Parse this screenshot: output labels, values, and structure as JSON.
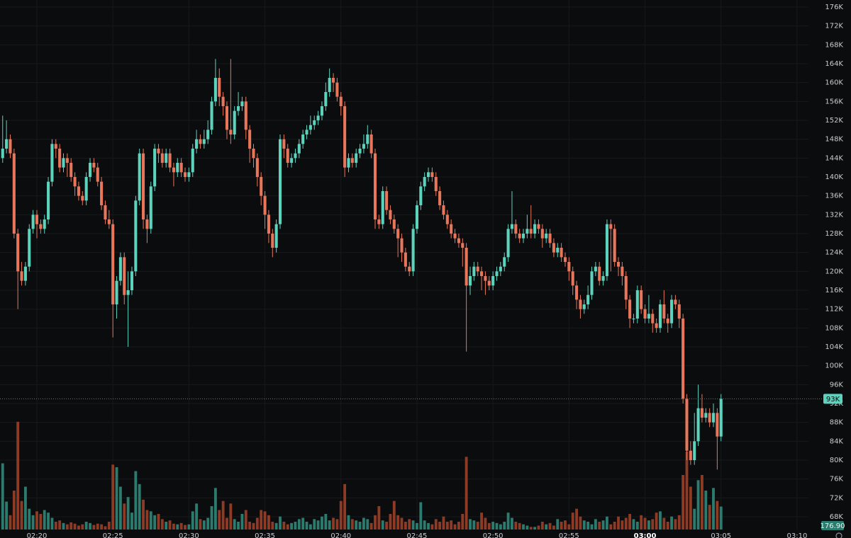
{
  "chart_data": {
    "type": "candlestick",
    "up_color": "#5cd3bd",
    "down_color": "#e8765a",
    "up_volume_color": "#2b7c6e",
    "down_volume_color": "#8e3b25",
    "ylim": [
      66.5,
      177.5
    ],
    "yticks": [
      {
        "value": 68,
        "label": "68K"
      },
      {
        "value": 72,
        "label": "72K"
      },
      {
        "value": 76,
        "label": "76K"
      },
      {
        "value": 80,
        "label": "80K"
      },
      {
        "value": 84,
        "label": "84K"
      },
      {
        "value": 88,
        "label": "88K"
      },
      {
        "value": 92,
        "label": "92K"
      },
      {
        "value": 96,
        "label": "96K"
      },
      {
        "value": 100,
        "label": "100K"
      },
      {
        "value": 104,
        "label": "104K"
      },
      {
        "value": 108,
        "label": "108K"
      },
      {
        "value": 112,
        "label": "112K"
      },
      {
        "value": 116,
        "label": "116K"
      },
      {
        "value": 120,
        "label": "120K"
      },
      {
        "value": 124,
        "label": "124K"
      },
      {
        "value": 128,
        "label": "128K"
      },
      {
        "value": 132,
        "label": "132K"
      },
      {
        "value": 136,
        "label": "136K"
      },
      {
        "value": 140,
        "label": "140K"
      },
      {
        "value": 144,
        "label": "144K"
      },
      {
        "value": 148,
        "label": "148K"
      },
      {
        "value": 152,
        "label": "152K"
      },
      {
        "value": 156,
        "label": "156K"
      },
      {
        "value": 160,
        "label": "160K"
      },
      {
        "value": 164,
        "label": "164K"
      },
      {
        "value": 168,
        "label": "168K"
      },
      {
        "value": 172,
        "label": "172K"
      },
      {
        "value": 176,
        "label": "176K"
      }
    ],
    "xlim": [
      -0.7,
      212
    ],
    "xticks": [
      {
        "value": 9,
        "label": "02:20"
      },
      {
        "value": 29,
        "label": "02:25"
      },
      {
        "value": 49,
        "label": "02:30"
      },
      {
        "value": 69,
        "label": "02:35"
      },
      {
        "value": 89,
        "label": "02:40"
      },
      {
        "value": 109,
        "label": "02:45"
      },
      {
        "value": 129,
        "label": "02:50"
      },
      {
        "value": 149,
        "label": "02:55"
      },
      {
        "value": 169,
        "label": "03:00",
        "emphasis": true
      },
      {
        "value": 189,
        "label": "03:05"
      },
      {
        "value": 209,
        "label": "03:10"
      }
    ],
    "grid": true,
    "last_price": {
      "value": 93,
      "label": "93K"
    },
    "volume_ylim": [
      0,
      900
    ],
    "last_volume_label": "176.90",
    "open": [
      144,
      146,
      148,
      145,
      128,
      120,
      118,
      121,
      129,
      132,
      130,
      129,
      131,
      139,
      147,
      146,
      142,
      144,
      143,
      140,
      138,
      136,
      135,
      140,
      143,
      142,
      139,
      134,
      131,
      130,
      113,
      118,
      123,
      115,
      116,
      120,
      135,
      145,
      131,
      129,
      138,
      146,
      145,
      143,
      145,
      142,
      141,
      143,
      141,
      140,
      141,
      146,
      148,
      147,
      148,
      150,
      156,
      161,
      157,
      155,
      150,
      149,
      154,
      155,
      156,
      150,
      146,
      144,
      140,
      136,
      132,
      128,
      125,
      130,
      148,
      146,
      143,
      144,
      145,
      147,
      149,
      150,
      151,
      152,
      153,
      155,
      158,
      161,
      160,
      157,
      155,
      142,
      144,
      143,
      145,
      146,
      147,
      149,
      145,
      131,
      130,
      137,
      133,
      131,
      129,
      127,
      124,
      121,
      120,
      129,
      134,
      138,
      140,
      141,
      140,
      137,
      134,
      132,
      130,
      128,
      127,
      126,
      125,
      117,
      119,
      121,
      120,
      119,
      118,
      117,
      119,
      120,
      121,
      123,
      129,
      130,
      128,
      127,
      128,
      129,
      128,
      130,
      129,
      127,
      128,
      126,
      124,
      125,
      123,
      122,
      120,
      117,
      114,
      112,
      113,
      115,
      120,
      121,
      118,
      119,
      130,
      129,
      122,
      121,
      119,
      114,
      110,
      110,
      116,
      112,
      110,
      111,
      109,
      108,
      113,
      110,
      109,
      114,
      113,
      110,
      93,
      82,
      80,
      84,
      91,
      89,
      90,
      88,
      90,
      85
    ],
    "high": [
      153,
      152,
      149,
      146,
      129,
      122,
      122,
      130,
      133,
      133,
      131,
      132,
      140,
      148,
      148,
      147,
      145,
      145,
      144,
      141,
      139,
      137,
      141,
      144,
      144,
      143,
      140,
      135,
      133,
      131,
      119,
      124,
      124,
      120,
      121,
      136,
      146,
      146,
      132,
      139,
      147,
      147,
      146,
      146,
      146,
      143,
      144,
      144,
      142,
      142,
      147,
      150,
      149,
      150,
      152,
      157,
      165,
      163,
      158,
      156,
      165,
      155,
      158,
      157,
      157,
      151,
      147,
      145,
      141,
      137,
      133,
      129,
      131,
      149,
      149,
      147,
      145,
      146,
      148,
      150,
      151,
      153,
      153,
      154,
      156,
      160,
      163,
      162,
      161,
      158,
      156,
      145,
      145,
      146,
      147,
      149,
      151,
      150,
      146,
      132,
      138,
      138,
      134,
      132,
      130,
      128,
      125,
      122,
      130,
      135,
      139,
      141,
      142,
      142,
      141,
      138,
      135,
      133,
      131,
      129,
      128,
      127,
      126,
      121,
      122,
      122,
      121,
      120,
      119,
      120,
      121,
      122,
      124,
      130,
      137,
      131,
      129,
      129,
      132,
      134,
      131,
      131,
      130,
      129,
      129,
      127,
      126,
      126,
      124,
      123,
      121,
      118,
      115,
      114,
      117,
      121,
      122,
      122,
      120,
      131,
      131,
      130,
      123,
      122,
      120,
      115,
      111,
      117,
      117,
      113,
      115,
      112,
      110,
      114,
      116,
      111,
      115,
      115,
      114,
      111,
      94,
      84,
      90,
      96,
      94,
      91,
      91,
      92,
      91,
      94
    ],
    "low": [
      143,
      145,
      144,
      127,
      112,
      117,
      117,
      120,
      128,
      127,
      128,
      128,
      130,
      138,
      144,
      141,
      141,
      140,
      139,
      136,
      135,
      134,
      134,
      139,
      141,
      138,
      133,
      130,
      129,
      106,
      110,
      117,
      113,
      104,
      115,
      119,
      134,
      129,
      126,
      128,
      137,
      143,
      142,
      142,
      141,
      138,
      140,
      140,
      139,
      139,
      140,
      145,
      146,
      146,
      147,
      149,
      155,
      155,
      153,
      148,
      147,
      148,
      153,
      154,
      148,
      143,
      142,
      138,
      134,
      129,
      126,
      123,
      124,
      129,
      144,
      142,
      142,
      143,
      144,
      146,
      148,
      149,
      150,
      151,
      152,
      154,
      157,
      158,
      156,
      153,
      140,
      141,
      142,
      142,
      144,
      145,
      146,
      144,
      129,
      129,
      129,
      132,
      130,
      128,
      123,
      122,
      120,
      119,
      119,
      128,
      133,
      137,
      139,
      139,
      136,
      133,
      131,
      129,
      127,
      126,
      125,
      121,
      103,
      115,
      118,
      119,
      116,
      115,
      116,
      116,
      118,
      119,
      120,
      122,
      128,
      127,
      126,
      126,
      127,
      127,
      127,
      128,
      125,
      126,
      125,
      123,
      123,
      122,
      121,
      118,
      115,
      112,
      110,
      111,
      112,
      114,
      119,
      117,
      117,
      118,
      120,
      121,
      119,
      117,
      112,
      108,
      109,
      109,
      111,
      109,
      109,
      107,
      107,
      107,
      109,
      107,
      108,
      112,
      108,
      92,
      80,
      79,
      79,
      83,
      88,
      88,
      87,
      87,
      78,
      84
    ],
    "close": [
      146,
      148,
      145,
      128,
      120,
      118,
      121,
      129,
      132,
      130,
      129,
      131,
      139,
      147,
      146,
      142,
      144,
      143,
      140,
      138,
      136,
      135,
      140,
      143,
      142,
      139,
      134,
      131,
      130,
      113,
      118,
      123,
      115,
      116,
      120,
      135,
      145,
      131,
      129,
      138,
      146,
      145,
      143,
      145,
      142,
      141,
      143,
      141,
      140,
      141,
      146,
      148,
      147,
      148,
      150,
      156,
      161,
      157,
      155,
      150,
      149,
      154,
      155,
      156,
      150,
      146,
      144,
      140,
      136,
      132,
      128,
      125,
      130,
      148,
      146,
      143,
      144,
      145,
      147,
      149,
      150,
      151,
      152,
      153,
      155,
      158,
      161,
      160,
      157,
      155,
      142,
      144,
      143,
      145,
      146,
      147,
      149,
      145,
      131,
      130,
      137,
      133,
      131,
      129,
      127,
      124,
      121,
      120,
      129,
      134,
      138,
      140,
      141,
      140,
      137,
      134,
      132,
      130,
      128,
      127,
      126,
      125,
      117,
      119,
      121,
      120,
      119,
      118,
      117,
      119,
      120,
      121,
      123,
      129,
      130,
      128,
      127,
      128,
      129,
      128,
      130,
      129,
      127,
      128,
      126,
      124,
      125,
      123,
      122,
      120,
      117,
      114,
      112,
      113,
      115,
      120,
      121,
      118,
      119,
      130,
      129,
      122,
      121,
      119,
      114,
      110,
      110,
      116,
      112,
      110,
      111,
      109,
      108,
      113,
      110,
      109,
      114,
      113,
      110,
      93,
      82,
      80,
      84,
      91,
      89,
      90,
      88,
      90,
      85,
      93
    ],
    "volume": [
      510,
      215,
      110,
      300,
      830,
      220,
      330,
      160,
      110,
      140,
      120,
      150,
      130,
      90,
      60,
      70,
      50,
      40,
      55,
      45,
      30,
      40,
      60,
      50,
      35,
      45,
      40,
      25,
      60,
      500,
      480,
      330,
      200,
      250,
      130,
      450,
      350,
      230,
      150,
      140,
      110,
      120,
      80,
      60,
      70,
      45,
      40,
      50,
      35,
      40,
      140,
      200,
      80,
      70,
      90,
      180,
      320,
      150,
      220,
      90,
      200,
      80,
      60,
      120,
      150,
      60,
      50,
      90,
      150,
      140,
      110,
      60,
      50,
      100,
      60,
      40,
      50,
      60,
      80,
      90,
      60,
      40,
      80,
      70,
      100,
      120,
      70,
      90,
      80,
      220,
      350,
      110,
      80,
      70,
      60,
      90,
      80,
      50,
      110,
      180,
      70,
      60,
      120,
      220,
      110,
      90,
      60,
      80,
      70,
      50,
      210,
      70,
      50,
      40,
      80,
      60,
      100,
      60,
      70,
      40,
      60,
      120,
      560,
      80,
      70,
      60,
      130,
      90,
      50,
      60,
      50,
      40,
      60,
      130,
      90,
      60,
      50,
      40,
      30,
      20,
      20,
      30,
      60,
      40,
      50,
      30,
      80,
      60,
      70,
      40,
      130,
      160,
      100,
      70,
      60,
      40,
      80,
      60,
      70,
      100,
      40,
      60,
      100,
      70,
      90,
      120,
      80,
      60,
      110,
      90,
      70,
      80,
      130,
      140,
      90,
      60,
      100,
      80,
      110,
      420,
      600,
      330,
      160,
      380,
      420,
      300,
      190,
      320,
      220,
      176.9
    ]
  }
}
